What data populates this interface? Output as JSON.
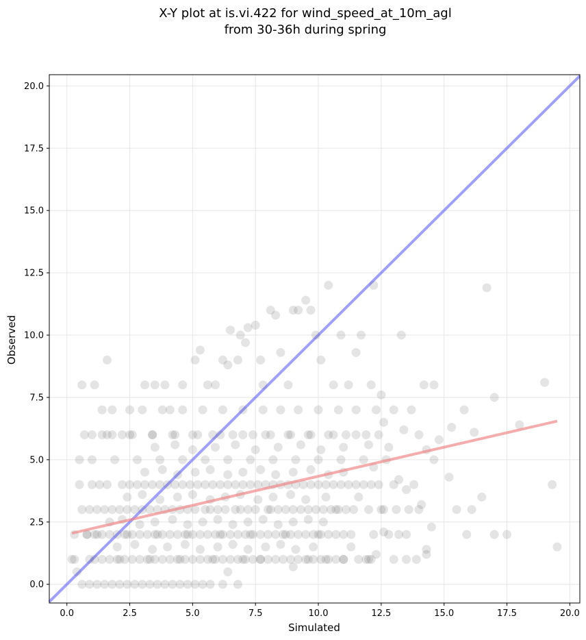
{
  "chart_data": {
    "type": "scatter",
    "title_lines": [
      "X-Y plot at is.vi.422 for wind_speed_at_10m_agl",
      "from 30-36h during spring"
    ],
    "xlabel": "Simulated",
    "ylabel": "Observed",
    "xlim": [
      -0.7,
      20.4
    ],
    "ylim": [
      -0.75,
      20.45
    ],
    "x_ticks": [
      0.0,
      2.5,
      5.0,
      7.5,
      10.0,
      12.5,
      15.0,
      17.5,
      20.0
    ],
    "x_tick_labels": [
      "0.0",
      "2.5",
      "5.0",
      "7.5",
      "10.0",
      "12.5",
      "15.0",
      "17.5",
      "20.0"
    ],
    "y_ticks": [
      0.0,
      2.5,
      5.0,
      7.5,
      10.0,
      12.5,
      15.0,
      17.5,
      20.0
    ],
    "y_tick_labels": [
      "0.0",
      "2.5",
      "5.0",
      "7.5",
      "10.0",
      "12.5",
      "15.0",
      "17.5",
      "20.0"
    ],
    "grid": true,
    "point_color": "#555555",
    "identity_line": {
      "color": "#6b6bff",
      "points": [
        [
          -0.7,
          -0.7
        ],
        [
          20.4,
          20.4
        ]
      ]
    },
    "regression_line": {
      "color": "#f08080",
      "points": [
        [
          0.2,
          2.05
        ],
        [
          19.5,
          6.55
        ]
      ]
    },
    "points": [
      [
        0.6,
        8.0
      ],
      [
        1.1,
        8.0
      ],
      [
        1.6,
        9.0
      ],
      [
        1.4,
        7.0
      ],
      [
        1.8,
        7.0
      ],
      [
        2.5,
        7.0
      ],
      [
        3.1,
        8.0
      ],
      [
        3.5,
        8.0
      ],
      [
        3.9,
        8.0
      ],
      [
        4.1,
        7.0
      ],
      [
        4.6,
        8.0
      ],
      [
        5.1,
        9.0
      ],
      [
        5.3,
        9.4
      ],
      [
        5.6,
        8.0
      ],
      [
        5.9,
        8.0
      ],
      [
        6.2,
        9.0
      ],
      [
        6.4,
        8.8
      ],
      [
        6.5,
        10.2
      ],
      [
        6.8,
        9.0
      ],
      [
        6.9,
        10.0
      ],
      [
        7.1,
        9.7
      ],
      [
        7.2,
        10.3
      ],
      [
        7.5,
        10.4
      ],
      [
        7.7,
        9.0
      ],
      [
        7.8,
        8.0
      ],
      [
        8.1,
        11.0
      ],
      [
        8.3,
        10.8
      ],
      [
        8.5,
        9.3
      ],
      [
        8.8,
        8.0
      ],
      [
        9.0,
        11.0
      ],
      [
        9.2,
        11.0
      ],
      [
        9.5,
        11.4
      ],
      [
        9.7,
        11.0
      ],
      [
        9.9,
        10.0
      ],
      [
        10.1,
        9.0
      ],
      [
        10.4,
        12.0
      ],
      [
        10.6,
        8.0
      ],
      [
        10.9,
        10.0
      ],
      [
        11.2,
        8.0
      ],
      [
        11.5,
        9.3
      ],
      [
        11.7,
        10.0
      ],
      [
        12.1,
        8.0
      ],
      [
        12.2,
        12.0
      ],
      [
        12.5,
        7.6
      ],
      [
        13.3,
        10.0
      ],
      [
        14.2,
        8.0
      ],
      [
        14.6,
        8.0
      ],
      [
        15.3,
        6.3
      ],
      [
        16.2,
        6.1
      ],
      [
        16.7,
        11.9
      ],
      [
        17.0,
        7.5
      ],
      [
        18.0,
        6.4
      ],
      [
        19.0,
        8.1
      ],
      [
        19.3,
        4.0
      ],
      [
        19.5,
        1.5
      ],
      [
        17.5,
        2.0
      ],
      [
        17.0,
        2.0
      ],
      [
        16.5,
        3.5
      ],
      [
        16.1,
        3.0
      ],
      [
        15.9,
        2.0
      ],
      [
        15.5,
        3.0
      ],
      [
        15.2,
        4.3
      ],
      [
        14.8,
        5.8
      ],
      [
        14.5,
        2.3
      ],
      [
        14.3,
        1.4
      ],
      [
        14.0,
        3.0
      ],
      [
        13.8,
        4.0
      ],
      [
        13.5,
        3.8
      ],
      [
        13.2,
        2.0
      ],
      [
        12.8,
        2.0
      ],
      [
        12.6,
        3.0
      ],
      [
        12.3,
        1.2
      ],
      [
        12.0,
        1.0
      ],
      [
        11.6,
        1.0
      ],
      [
        11.3,
        2.0
      ],
      [
        11.0,
        1.0
      ],
      [
        10.7,
        3.0
      ],
      [
        10.3,
        1.0
      ],
      [
        10.0,
        2.0
      ],
      [
        9.6,
        1.0
      ],
      [
        9.3,
        3.0
      ],
      [
        9.0,
        0.7
      ],
      [
        8.7,
        2.0
      ],
      [
        8.3,
        1.0
      ],
      [
        8.0,
        3.0
      ],
      [
        7.7,
        1.0
      ],
      [
        7.3,
        2.0
      ],
      [
        7.0,
        1.0
      ],
      [
        6.7,
        3.0
      ],
      [
        6.4,
        0.5
      ],
      [
        6.1,
        2.0
      ],
      [
        5.8,
        1.0
      ],
      [
        5.5,
        3.0
      ],
      [
        5.1,
        0.0
      ],
      [
        4.8,
        2.0
      ],
      [
        4.5,
        1.0
      ],
      [
        4.2,
        3.0
      ],
      [
        3.9,
        0.0
      ],
      [
        3.6,
        2.0
      ],
      [
        3.3,
        1.0
      ],
      [
        3.0,
        3.0
      ],
      [
        2.7,
        0.0
      ],
      [
        2.4,
        2.0
      ],
      [
        2.1,
        1.0
      ],
      [
        1.8,
        3.0
      ],
      [
        1.5,
        0.0
      ],
      [
        1.2,
        2.0
      ],
      [
        0.9,
        1.0
      ],
      [
        0.6,
        3.0
      ],
      [
        0.4,
        0.5
      ],
      [
        0.3,
        1.0
      ],
      [
        0.5,
        4.0
      ],
      [
        0.8,
        2.0
      ],
      [
        1.0,
        5.0
      ],
      [
        1.3,
        4.0
      ],
      [
        1.6,
        6.0
      ],
      [
        1.9,
        5.0
      ],
      [
        2.2,
        4.0
      ],
      [
        2.5,
        6.0
      ],
      [
        2.8,
        5.0
      ],
      [
        3.1,
        4.0
      ],
      [
        3.4,
        6.0
      ],
      [
        3.7,
        5.0
      ],
      [
        4.0,
        4.0
      ],
      [
        4.3,
        6.0
      ],
      [
        4.6,
        5.0
      ],
      [
        4.9,
        4.0
      ],
      [
        5.2,
        6.0
      ],
      [
        5.5,
        5.0
      ],
      [
        5.8,
        4.0
      ],
      [
        6.1,
        6.0
      ],
      [
        6.4,
        5.0
      ],
      [
        6.7,
        4.0
      ],
      [
        7.0,
        6.0
      ],
      [
        7.3,
        5.0
      ],
      [
        7.6,
        4.0
      ],
      [
        7.9,
        6.0
      ],
      [
        8.2,
        5.0
      ],
      [
        8.5,
        4.0
      ],
      [
        8.8,
        6.0
      ],
      [
        9.1,
        5.0
      ],
      [
        9.4,
        4.0
      ],
      [
        9.7,
        6.0
      ],
      [
        10.0,
        5.0
      ],
      [
        10.3,
        4.0
      ],
      [
        10.6,
        6.0
      ],
      [
        10.9,
        5.0
      ],
      [
        11.2,
        4.0
      ],
      [
        11.5,
        6.0
      ],
      [
        11.8,
        5.0
      ],
      [
        12.1,
        4.0
      ],
      [
        12.4,
        6.0
      ],
      [
        12.7,
        5.0
      ],
      [
        13.0,
        4.0
      ],
      [
        13.4,
        6.2
      ],
      [
        13.7,
        7.0
      ],
      [
        14.0,
        6.0
      ],
      [
        14.3,
        5.4
      ],
      [
        14.6,
        5.0
      ],
      [
        15.8,
        7.0
      ],
      [
        13.0,
        7.0
      ],
      [
        12.6,
        6.5
      ],
      [
        12.3,
        7.0
      ],
      [
        11.9,
        6.0
      ],
      [
        11.5,
        7.0
      ],
      [
        11.1,
        6.0
      ],
      [
        10.8,
        7.0
      ],
      [
        10.4,
        6.0
      ],
      [
        10.0,
        7.0
      ],
      [
        9.6,
        6.0
      ],
      [
        9.2,
        7.0
      ],
      [
        8.9,
        6.0
      ],
      [
        8.5,
        7.0
      ],
      [
        8.1,
        6.0
      ],
      [
        7.8,
        7.0
      ],
      [
        7.4,
        6.0
      ],
      [
        7.0,
        7.0
      ],
      [
        6.6,
        6.0
      ],
      [
        6.2,
        7.0
      ],
      [
        5.8,
        6.0
      ],
      [
        5.4,
        7.0
      ],
      [
        5.0,
        6.0
      ],
      [
        4.6,
        7.0
      ],
      [
        4.2,
        6.0
      ],
      [
        3.8,
        7.0
      ],
      [
        3.4,
        6.0
      ],
      [
        3.0,
        7.0
      ],
      [
        2.6,
        6.0
      ],
      [
        2.2,
        6.0
      ],
      [
        1.8,
        6.0
      ],
      [
        1.4,
        6.0
      ],
      [
        1.0,
        6.0
      ],
      [
        0.7,
        6.0
      ],
      [
        0.5,
        5.0
      ],
      [
        0.3,
        2.0
      ],
      [
        0.2,
        1.0
      ],
      [
        0.6,
        0.0
      ],
      [
        0.9,
        0.0
      ],
      [
        1.2,
        0.0
      ],
      [
        1.8,
        0.0
      ],
      [
        2.1,
        0.0
      ],
      [
        2.4,
        0.0
      ],
      [
        3.0,
        0.0
      ],
      [
        3.3,
        0.0
      ],
      [
        3.6,
        0.0
      ],
      [
        4.2,
        0.0
      ],
      [
        4.5,
        0.0
      ],
      [
        4.8,
        0.0
      ],
      [
        5.4,
        0.0
      ],
      [
        5.7,
        0.0
      ],
      [
        6.2,
        0.0
      ],
      [
        6.8,
        0.0
      ],
      [
        1.1,
        1.0
      ],
      [
        1.4,
        1.0
      ],
      [
        1.7,
        1.0
      ],
      [
        2.0,
        1.0
      ],
      [
        2.3,
        1.0
      ],
      [
        2.6,
        1.0
      ],
      [
        2.9,
        1.0
      ],
      [
        3.2,
        1.0
      ],
      [
        3.5,
        1.0
      ],
      [
        3.8,
        1.0
      ],
      [
        4.1,
        1.0
      ],
      [
        4.4,
        1.0
      ],
      [
        4.7,
        1.0
      ],
      [
        5.0,
        1.0
      ],
      [
        5.3,
        1.0
      ],
      [
        5.6,
        1.0
      ],
      [
        5.9,
        1.0
      ],
      [
        6.2,
        1.0
      ],
      [
        6.5,
        1.0
      ],
      [
        6.8,
        1.0
      ],
      [
        7.1,
        1.0
      ],
      [
        7.4,
        1.0
      ],
      [
        7.7,
        1.0
      ],
      [
        8.0,
        1.0
      ],
      [
        8.6,
        1.0
      ],
      [
        8.9,
        1.0
      ],
      [
        9.2,
        1.0
      ],
      [
        9.5,
        1.0
      ],
      [
        9.8,
        1.0
      ],
      [
        10.1,
        1.0
      ],
      [
        10.4,
        1.0
      ],
      [
        10.7,
        1.0
      ],
      [
        11.0,
        1.0
      ],
      [
        11.9,
        1.0
      ],
      [
        12.1,
        1.0
      ],
      [
        13.0,
        1.0
      ],
      [
        13.5,
        1.0
      ],
      [
        13.9,
        1.0
      ],
      [
        0.8,
        2.0
      ],
      [
        1.1,
        2.0
      ],
      [
        1.4,
        2.0
      ],
      [
        1.7,
        2.0
      ],
      [
        2.0,
        2.0
      ],
      [
        2.3,
        2.0
      ],
      [
        2.6,
        2.0
      ],
      [
        2.9,
        2.0
      ],
      [
        3.2,
        2.0
      ],
      [
        3.5,
        2.0
      ],
      [
        3.8,
        2.0
      ],
      [
        4.1,
        2.0
      ],
      [
        4.4,
        2.0
      ],
      [
        4.7,
        2.0
      ],
      [
        5.0,
        2.0
      ],
      [
        5.3,
        2.0
      ],
      [
        5.6,
        2.0
      ],
      [
        5.9,
        2.0
      ],
      [
        6.2,
        2.0
      ],
      [
        6.5,
        2.0
      ],
      [
        6.8,
        2.0
      ],
      [
        7.1,
        2.0
      ],
      [
        7.4,
        2.0
      ],
      [
        7.7,
        2.0
      ],
      [
        8.0,
        2.0
      ],
      [
        8.3,
        2.0
      ],
      [
        8.6,
        2.0
      ],
      [
        8.9,
        2.0
      ],
      [
        9.2,
        2.0
      ],
      [
        9.5,
        2.0
      ],
      [
        9.8,
        2.0
      ],
      [
        10.1,
        2.0
      ],
      [
        10.4,
        2.0
      ],
      [
        10.7,
        2.0
      ],
      [
        11.0,
        2.0
      ],
      [
        12.2,
        2.0
      ],
      [
        12.6,
        2.1
      ],
      [
        13.5,
        2.0
      ],
      [
        14.3,
        1.2
      ],
      [
        0.9,
        3.0
      ],
      [
        1.2,
        3.0
      ],
      [
        1.5,
        3.0
      ],
      [
        2.1,
        3.0
      ],
      [
        2.4,
        3.0
      ],
      [
        2.7,
        3.0
      ],
      [
        3.3,
        3.0
      ],
      [
        3.6,
        3.0
      ],
      [
        3.9,
        3.0
      ],
      [
        4.5,
        3.0
      ],
      [
        4.8,
        3.0
      ],
      [
        5.1,
        3.0
      ],
      [
        5.7,
        3.0
      ],
      [
        6.0,
        3.0
      ],
      [
        6.3,
        3.0
      ],
      [
        6.9,
        3.0
      ],
      [
        7.2,
        3.0
      ],
      [
        7.5,
        3.0
      ],
      [
        8.1,
        3.0
      ],
      [
        8.4,
        3.0
      ],
      [
        8.7,
        3.0
      ],
      [
        9.0,
        3.0
      ],
      [
        9.6,
        3.0
      ],
      [
        9.9,
        3.0
      ],
      [
        10.2,
        3.0
      ],
      [
        10.5,
        3.0
      ],
      [
        10.8,
        3.0
      ],
      [
        11.1,
        3.0
      ],
      [
        11.4,
        3.0
      ],
      [
        12.0,
        3.0
      ],
      [
        12.5,
        3.0
      ],
      [
        13.1,
        3.0
      ],
      [
        13.6,
        3.0
      ],
      [
        14.1,
        3.2
      ],
      [
        1.0,
        4.0
      ],
      [
        1.6,
        4.0
      ],
      [
        2.5,
        4.0
      ],
      [
        2.8,
        4.0
      ],
      [
        3.4,
        4.0
      ],
      [
        3.7,
        4.0
      ],
      [
        4.3,
        4.0
      ],
      [
        4.6,
        4.0
      ],
      [
        5.2,
        4.0
      ],
      [
        5.5,
        4.0
      ],
      [
        6.1,
        4.0
      ],
      [
        6.4,
        4.0
      ],
      [
        7.0,
        4.0
      ],
      [
        7.3,
        4.0
      ],
      [
        7.9,
        4.0
      ],
      [
        8.2,
        4.0
      ],
      [
        8.8,
        4.0
      ],
      [
        9.1,
        4.0
      ],
      [
        9.7,
        4.0
      ],
      [
        10.0,
        4.0
      ],
      [
        10.6,
        4.0
      ],
      [
        10.9,
        4.0
      ],
      [
        11.5,
        4.0
      ],
      [
        11.8,
        4.0
      ],
      [
        12.4,
        4.0
      ],
      [
        13.2,
        4.2
      ],
      [
        1.7,
        2.5
      ],
      [
        2.2,
        2.6
      ],
      [
        2.9,
        2.4
      ],
      [
        3.5,
        2.5
      ],
      [
        4.2,
        2.6
      ],
      [
        4.8,
        2.4
      ],
      [
        5.4,
        2.5
      ],
      [
        6.0,
        2.6
      ],
      [
        6.6,
        2.4
      ],
      [
        7.2,
        2.5
      ],
      [
        7.8,
        2.6
      ],
      [
        8.4,
        2.4
      ],
      [
        9.0,
        2.5
      ],
      [
        9.6,
        2.6
      ],
      [
        10.2,
        2.5
      ],
      [
        2.0,
        1.5
      ],
      [
        2.7,
        1.6
      ],
      [
        3.4,
        1.4
      ],
      [
        4.0,
        1.5
      ],
      [
        4.7,
        1.6
      ],
      [
        5.3,
        1.4
      ],
      [
        6.0,
        1.5
      ],
      [
        6.6,
        1.6
      ],
      [
        7.2,
        1.4
      ],
      [
        7.9,
        1.5
      ],
      [
        8.5,
        1.6
      ],
      [
        9.1,
        1.4
      ],
      [
        9.8,
        1.5
      ],
      [
        11.3,
        1.5
      ],
      [
        2.4,
        3.5
      ],
      [
        3.0,
        3.6
      ],
      [
        3.7,
        3.4
      ],
      [
        4.4,
        3.5
      ],
      [
        5.0,
        3.6
      ],
      [
        5.7,
        3.4
      ],
      [
        6.3,
        3.5
      ],
      [
        6.9,
        3.6
      ],
      [
        7.6,
        3.4
      ],
      [
        8.2,
        3.5
      ],
      [
        8.9,
        3.6
      ],
      [
        9.5,
        3.4
      ],
      [
        10.3,
        3.5
      ],
      [
        11.6,
        3.5
      ],
      [
        3.1,
        4.5
      ],
      [
        3.8,
        4.6
      ],
      [
        4.4,
        4.4
      ],
      [
        5.1,
        4.5
      ],
      [
        5.7,
        4.6
      ],
      [
        6.4,
        4.4
      ],
      [
        7.0,
        4.5
      ],
      [
        7.7,
        4.6
      ],
      [
        8.3,
        4.4
      ],
      [
        9.0,
        4.5
      ],
      [
        9.7,
        4.6
      ],
      [
        10.4,
        4.4
      ],
      [
        11.0,
        4.5
      ],
      [
        12.2,
        4.7
      ],
      [
        3.5,
        5.5
      ],
      [
        4.3,
        5.6
      ],
      [
        5.0,
        5.4
      ],
      [
        5.9,
        5.5
      ],
      [
        6.7,
        5.6
      ],
      [
        7.5,
        5.4
      ],
      [
        8.4,
        5.5
      ],
      [
        9.3,
        5.6
      ],
      [
        10.1,
        5.4
      ],
      [
        11.0,
        5.5
      ],
      [
        12.0,
        5.6
      ],
      [
        12.8,
        5.5
      ]
    ]
  }
}
